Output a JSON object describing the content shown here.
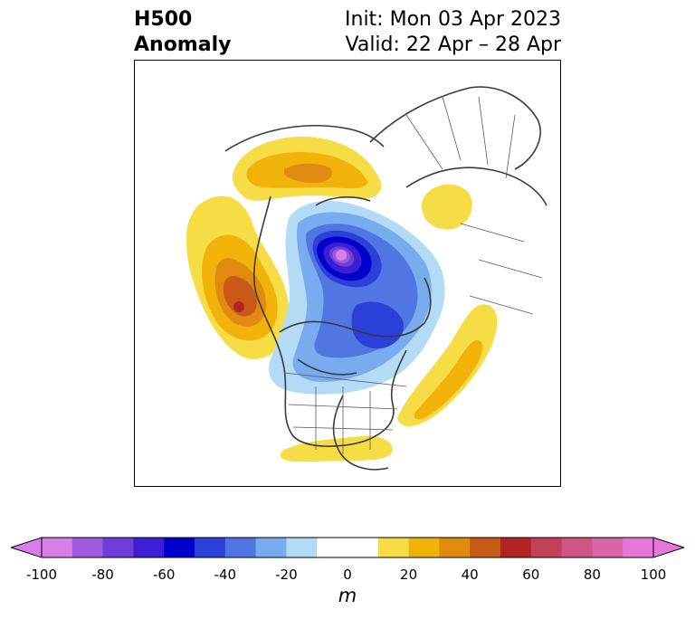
{
  "title": {
    "left_line1": "H500",
    "left_line2": "Anomaly",
    "right_line1": "Init: Mon 03 Apr 2023",
    "right_line2": "Valid: 22 Apr – 28 Apr"
  },
  "map": {
    "projection": "polar stereographic (North Pole)",
    "features": [
      "coastlines",
      "country borders",
      "US state borders",
      "Canadian province borders"
    ],
    "anomaly_centers": [
      {
        "name": "negative",
        "region": "Arctic Ocean / near North Pole",
        "peak_m": -100
      },
      {
        "name": "negative",
        "region": "Hudson Bay / central Canada",
        "peak_m": -70
      },
      {
        "name": "positive",
        "region": "Gulf of Alaska / NE Pacific",
        "peak_m": 60
      },
      {
        "name": "positive",
        "region": "Northern Siberia / Kara Sea",
        "peak_m": 40
      },
      {
        "name": "positive",
        "region": "Western Russia",
        "peak_m": 20
      },
      {
        "name": "positive",
        "region": "North Atlantic",
        "peak_m": 30
      },
      {
        "name": "positive",
        "region": "Southeastern US",
        "peak_m": 20
      }
    ]
  },
  "colorbar": {
    "unit": "m",
    "extend": "both",
    "levels": [
      -100,
      -90,
      -80,
      -70,
      -60,
      -50,
      -40,
      -30,
      -20,
      -10,
      10,
      20,
      30,
      40,
      50,
      60,
      70,
      80,
      90,
      100
    ],
    "tick_labels": [
      "-100",
      "-80",
      "-60",
      "-40",
      "-20",
      "0",
      "20",
      "40",
      "60",
      "80",
      "100"
    ],
    "colors": {
      "under": "#d97ee8",
      "bins": [
        "#d97ee8",
        "#a05ae0",
        "#6f3ed8",
        "#3c1ed4",
        "#0000cc",
        "#2a40d8",
        "#4f76e3",
        "#78acee",
        "#b3dbf6",
        "#ffffff",
        "#ffffff",
        "#f6dd46",
        "#f1b20a",
        "#e08a10",
        "#c85a18",
        "#b22424",
        "#c24058",
        "#cf5582",
        "#d964a8",
        "#e876d6"
      ],
      "over": "#e876d6"
    }
  }
}
